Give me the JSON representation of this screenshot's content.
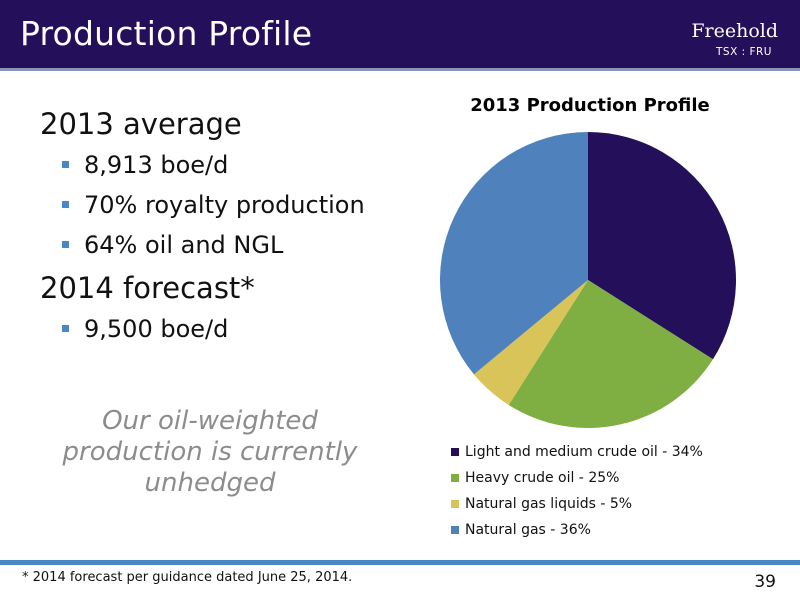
{
  "header": {
    "title": "Production Profile",
    "logo_name": "Freehold",
    "logo_ticker": "TSX : FRU"
  },
  "bullets": {
    "h2013": "2013 average",
    "b1": "8,913 boe/d",
    "b2": "70% royalty production",
    "b3": "64% oil and NGL",
    "h2014": "2014 forecast*",
    "b4": "9,500 boe/d"
  },
  "note": "Our oil-weighted production is currently unhedged",
  "footer": {
    "footnote": "* 2014 forecast per guidance dated June 25, 2014.",
    "page_number": "39"
  },
  "chart_data": {
    "type": "pie",
    "title": "2013 Production Profile",
    "legend_position": "bottom",
    "series": [
      {
        "name": "Light and medium crude oil - 34%",
        "value": 34,
        "color": "#24105a"
      },
      {
        "name": "Heavy crude oil - 25%",
        "value": 25,
        "color": "#7fae43"
      },
      {
        "name": "Natural gas liquids - 5%",
        "value": 5,
        "color": "#d8c458"
      },
      {
        "name": "Natural gas - 36%",
        "value": 36,
        "color": "#4f81bd"
      }
    ]
  },
  "colors": {
    "header_bg": "#24105a",
    "accent_blue": "#4b86c6",
    "note_gray": "#8c8c8c"
  }
}
